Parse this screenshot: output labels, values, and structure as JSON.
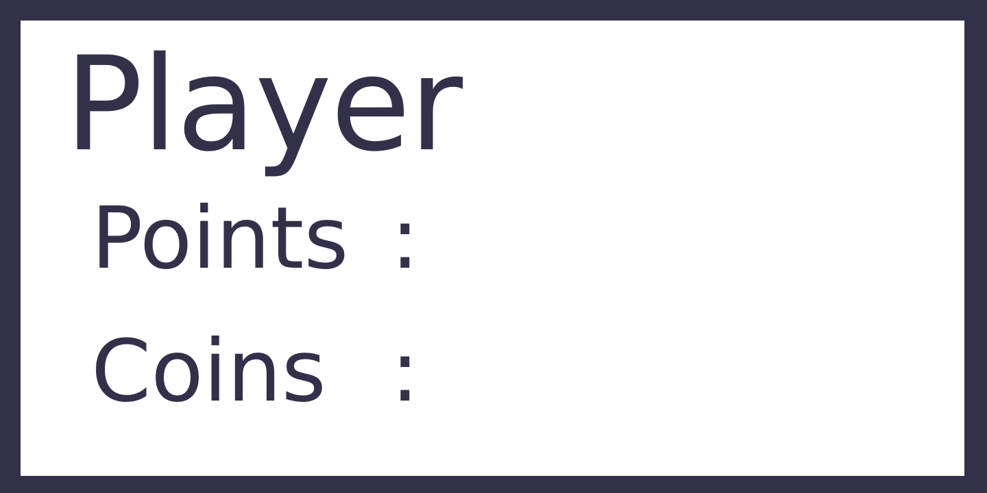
{
  "player_panel": {
    "title": "Player",
    "stats": {
      "points": {
        "label": "Points",
        "separator": ":",
        "value": ""
      },
      "coins": {
        "label": "Coins",
        "separator": ":",
        "value": ""
      }
    }
  },
  "colors": {
    "frame": "#33304a",
    "background": "#ffffff",
    "text": "#33304a"
  }
}
